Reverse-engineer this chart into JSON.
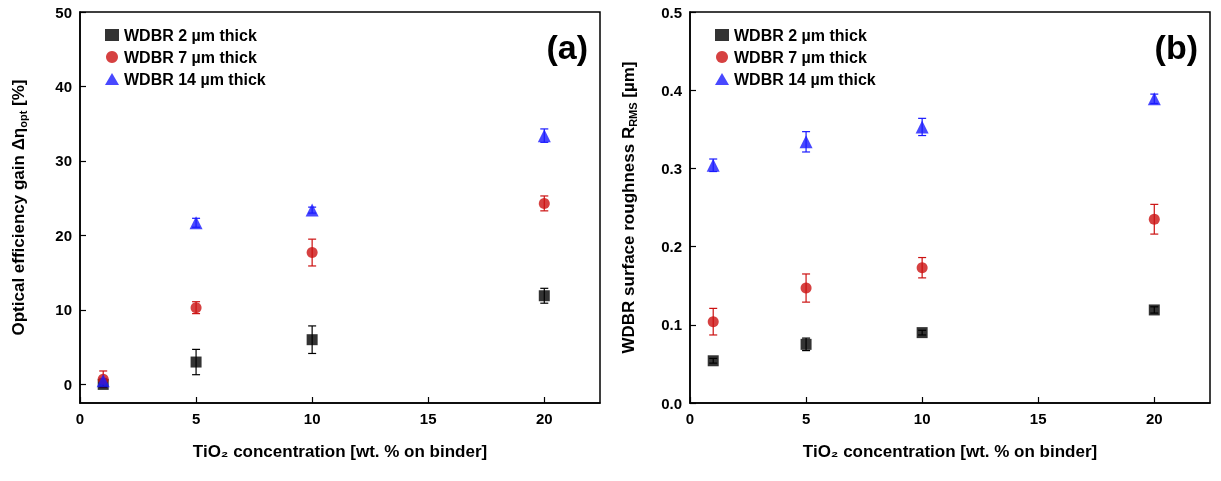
{
  "chart_data": [
    {
      "type": "scatter",
      "xlabel": "TiO₂ concentration [wt. % on binder]",
      "ylabel": "Optical efficiency gain Δη$_{opt}$ [%]",
      "annotations": [
        "(a)"
      ],
      "x": [
        1,
        5,
        10,
        20
      ],
      "xlim": [
        0,
        22.4
      ],
      "xticks": [
        0,
        5,
        10,
        15,
        20
      ],
      "ylim": [
        -2.5,
        50
      ],
      "yticks": [
        0,
        10,
        20,
        30,
        40,
        50
      ],
      "grid": false,
      "legend": "top left",
      "series": [
        {
          "name": "WDBR 2 µm thick",
          "color": "#000000",
          "marker": "square",
          "values": [
            0,
            3.0,
            6.0,
            11.9
          ],
          "errors": [
            0.3,
            1.7,
            1.85,
            1.0
          ]
        },
        {
          "name": "WDBR 7 µm thick",
          "color": "#cc1111",
          "marker": "circle",
          "values": [
            0.7,
            10.3,
            17.7,
            24.3
          ],
          "errors": [
            1.1,
            0.8,
            1.8,
            1.0
          ]
        },
        {
          "name": "WDBR 14 µm thick",
          "color": "#1a1aff",
          "marker": "triangle",
          "values": [
            0.5,
            21.7,
            23.4,
            33.4
          ],
          "errors": [
            0.3,
            0.6,
            0.4,
            0.9
          ]
        }
      ]
    },
    {
      "type": "scatter",
      "xlabel": "TiO₂ concentration [wt. % on binder]",
      "ylabel": "WDBR surface roughness R$_{RMS}$ [µm]",
      "annotations": [
        "(b)"
      ],
      "x": [
        1,
        5,
        10,
        20
      ],
      "xlim": [
        0,
        22.4
      ],
      "xticks": [
        0,
        5,
        10,
        15,
        20
      ],
      "ylim": [
        0,
        0.5
      ],
      "yticks": [
        {
          "value": 0,
          "label": "0.0"
        },
        {
          "value": 0.1,
          "label": "0.1"
        },
        {
          "value": 0.2,
          "label": "0.2"
        },
        {
          "value": 0.3,
          "label": "0.3"
        },
        {
          "value": 0.4,
          "label": "0.4"
        },
        {
          "value": 0.5,
          "label": "0.5"
        }
      ],
      "grid": false,
      "legend": "top left",
      "series": [
        {
          "name": "WDBR 2 µm thick",
          "color": "#000000",
          "marker": "square",
          "values": [
            0.054,
            0.075,
            0.09,
            0.119
          ],
          "errors": [
            0.003,
            0.008,
            0.003,
            0.004
          ]
        },
        {
          "name": "WDBR 7 µm thick",
          "color": "#cc1111",
          "marker": "circle",
          "values": [
            0.104,
            0.147,
            0.173,
            0.235
          ],
          "errors": [
            0.017,
            0.018,
            0.013,
            0.019
          ]
        },
        {
          "name": "WDBR 14 µm thick",
          "color": "#1a1aff",
          "marker": "triangle",
          "values": [
            0.304,
            0.334,
            0.353,
            0.389
          ],
          "errors": [
            0.008,
            0.013,
            0.011,
            0.006
          ]
        }
      ]
    }
  ]
}
